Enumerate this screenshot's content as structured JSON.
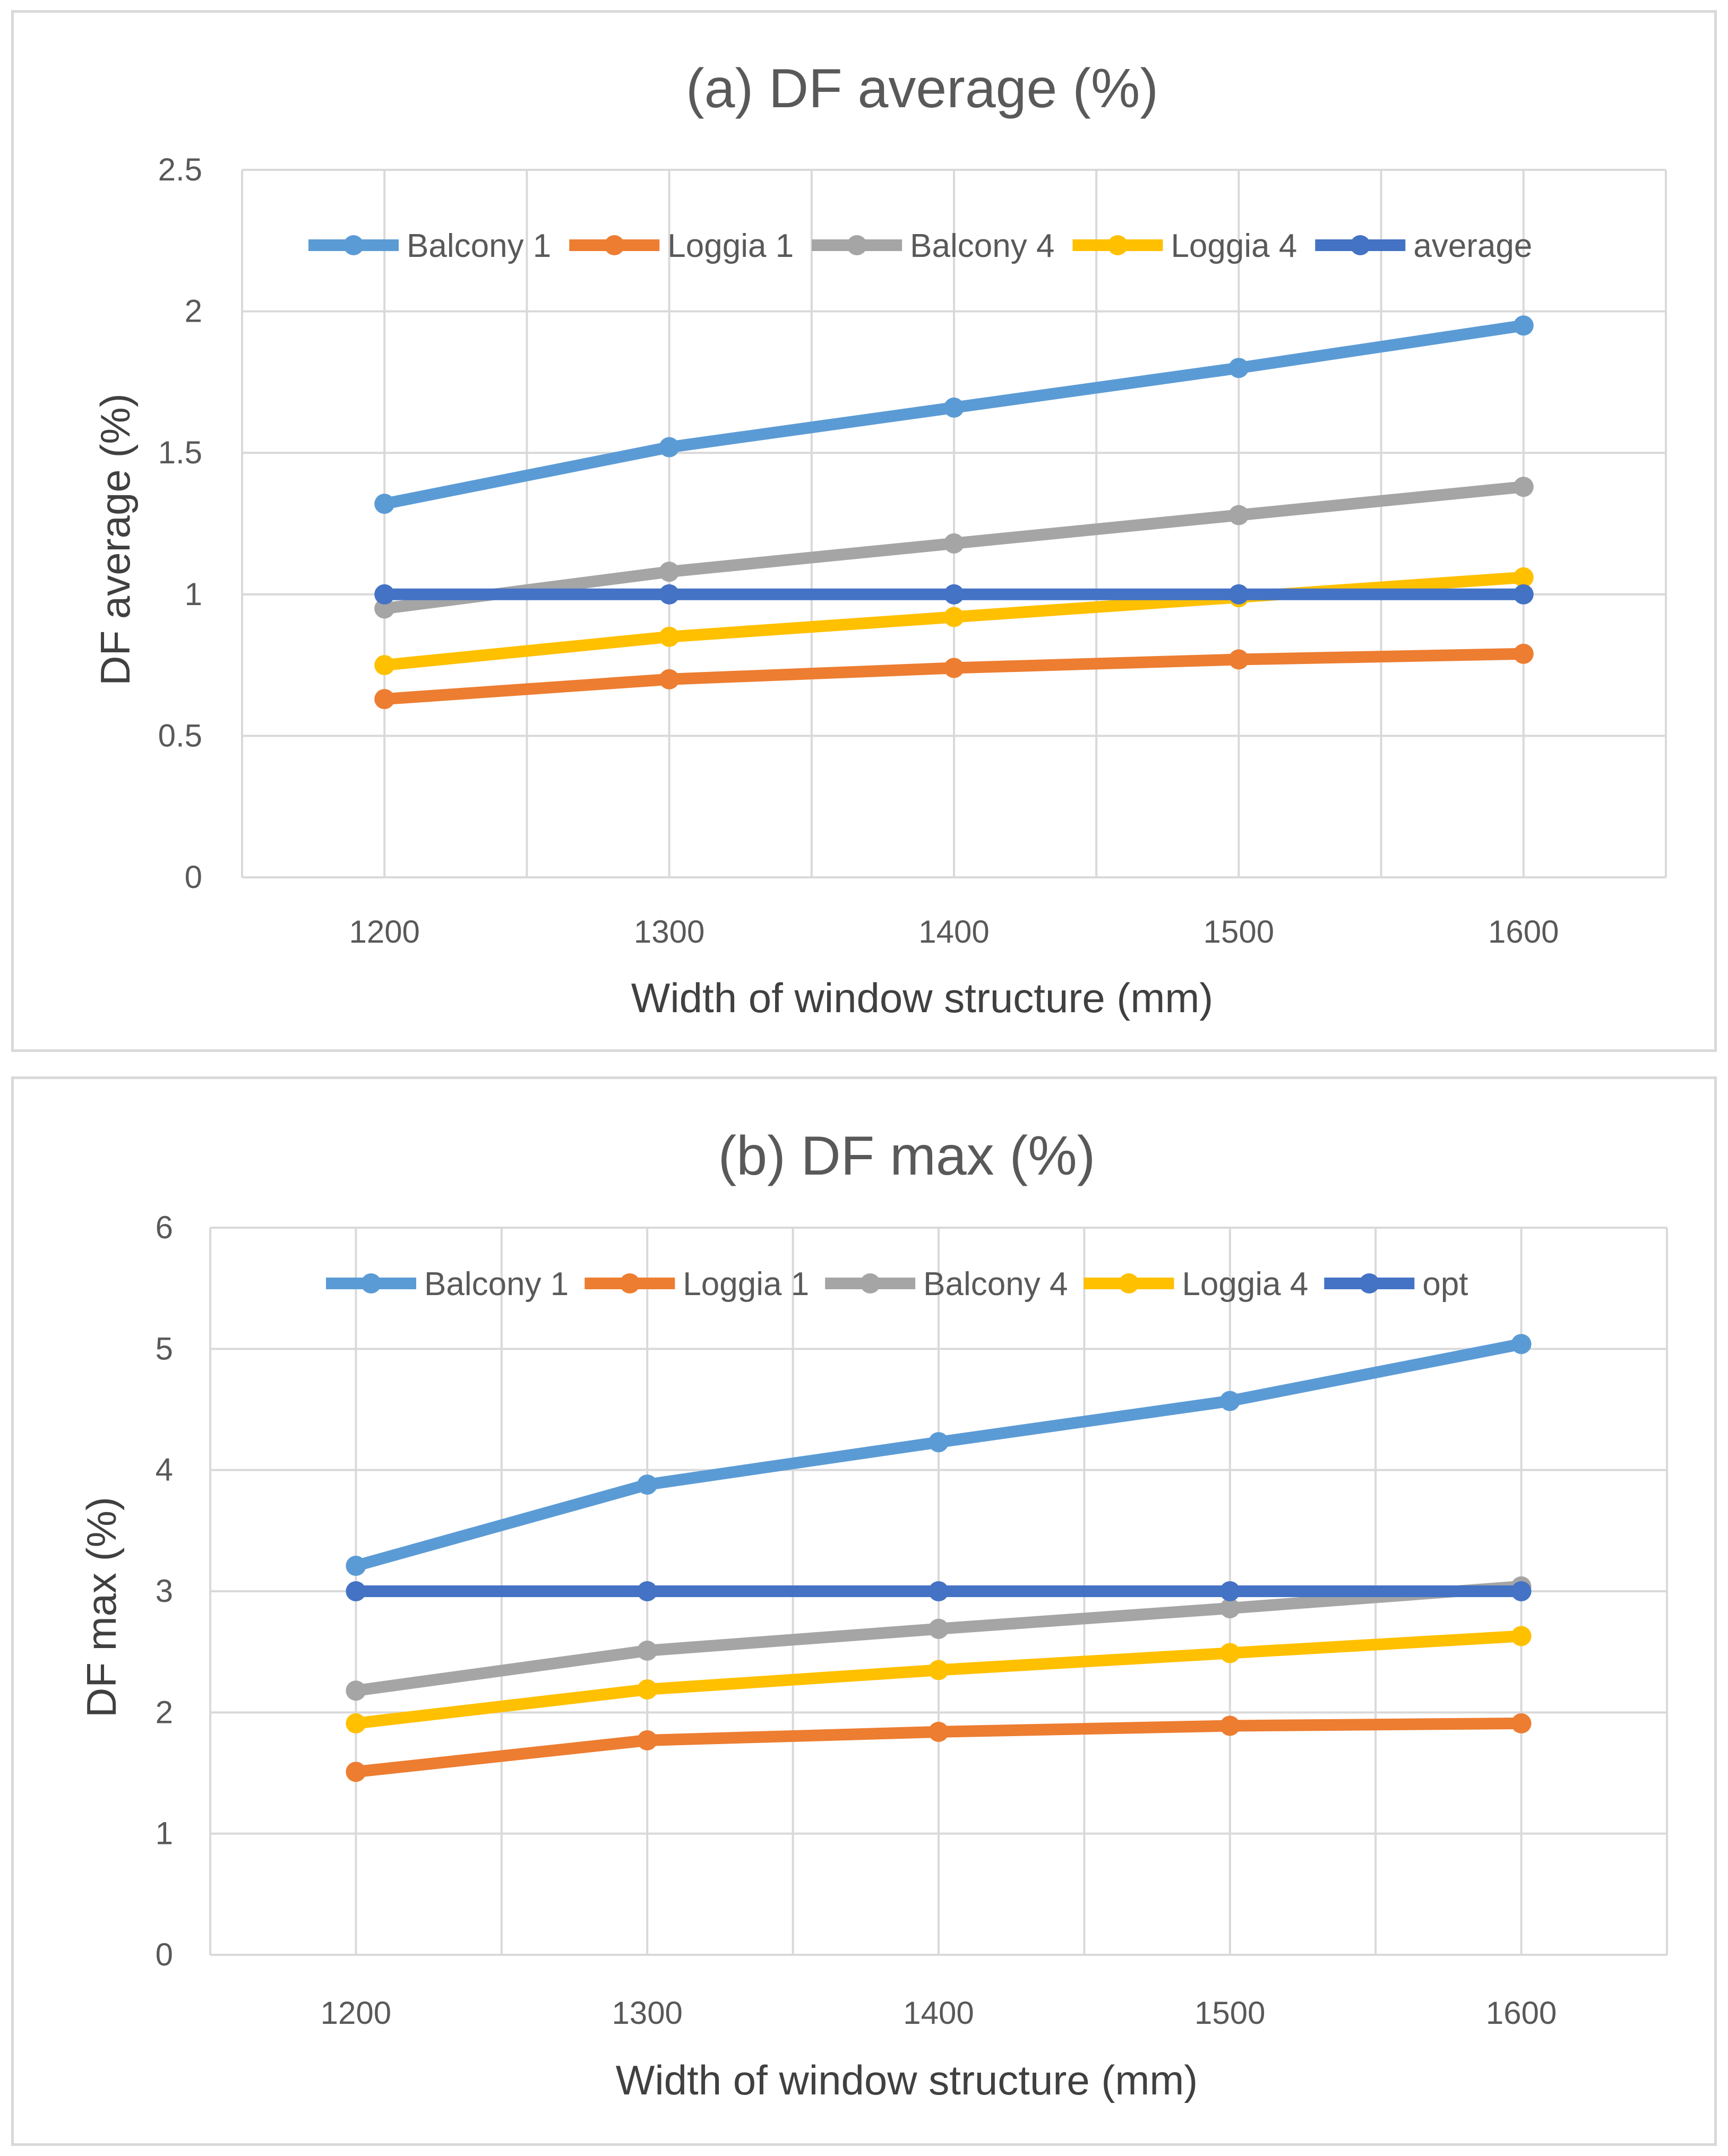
{
  "chart_data": [
    {
      "type": "line",
      "title": "(a) DF average (%)",
      "xlabel": "Width of window structure (mm)",
      "ylabel": "DF average (%)",
      "categories": [
        "1200",
        "1300",
        "1400",
        "1500",
        "1600"
      ],
      "ylim": [
        0,
        2.5
      ],
      "yticks": [
        "0",
        "0.5",
        "1",
        "1.5",
        "2",
        "2.5"
      ],
      "ytick_values": [
        0,
        0.5,
        1,
        1.5,
        2,
        2.5
      ],
      "grid": true,
      "legend_position": "top",
      "series": [
        {
          "name": "Balcony 1",
          "color": "#5b9bd5",
          "values": [
            1.32,
            1.52,
            1.66,
            1.8,
            1.95
          ]
        },
        {
          "name": "Loggia 1",
          "color": "#ed7d31",
          "values": [
            0.63,
            0.7,
            0.74,
            0.77,
            0.79
          ]
        },
        {
          "name": "Balcony 4",
          "color": "#a5a5a5",
          "values": [
            0.95,
            1.08,
            1.18,
            1.28,
            1.38
          ]
        },
        {
          "name": "Loggia 4",
          "color": "#ffc000",
          "values": [
            0.75,
            0.85,
            0.92,
            0.99,
            1.06
          ]
        },
        {
          "name": "average",
          "color": "#4472c4",
          "values": [
            1.0,
            1.0,
            1.0,
            1.0,
            1.0
          ]
        }
      ]
    },
    {
      "type": "line",
      "title": "(b) DF max (%)",
      "xlabel": "Width of window structure (mm)",
      "ylabel": "DF max (%)",
      "categories": [
        "1200",
        "1300",
        "1400",
        "1500",
        "1600"
      ],
      "ylim": [
        0,
        6
      ],
      "yticks": [
        "0",
        "1",
        "2",
        "3",
        "4",
        "5",
        "6"
      ],
      "ytick_values": [
        0,
        1,
        2,
        3,
        4,
        5,
        6
      ],
      "grid": true,
      "legend_position": "top",
      "series": [
        {
          "name": "Balcony 1",
          "color": "#5b9bd5",
          "values": [
            3.21,
            3.88,
            4.23,
            4.57,
            5.04
          ]
        },
        {
          "name": "Loggia 1",
          "color": "#ed7d31",
          "values": [
            1.51,
            1.77,
            1.84,
            1.89,
            1.91
          ]
        },
        {
          "name": "Balcony 4",
          "color": "#a5a5a5",
          "values": [
            2.18,
            2.51,
            2.69,
            2.86,
            3.04
          ]
        },
        {
          "name": "Loggia 4",
          "color": "#ffc000",
          "values": [
            1.91,
            2.19,
            2.35,
            2.49,
            2.63
          ]
        },
        {
          "name": "opt",
          "color": "#4472c4",
          "values": [
            3.0,
            3.0,
            3.0,
            3.0,
            3.0
          ]
        }
      ]
    }
  ]
}
